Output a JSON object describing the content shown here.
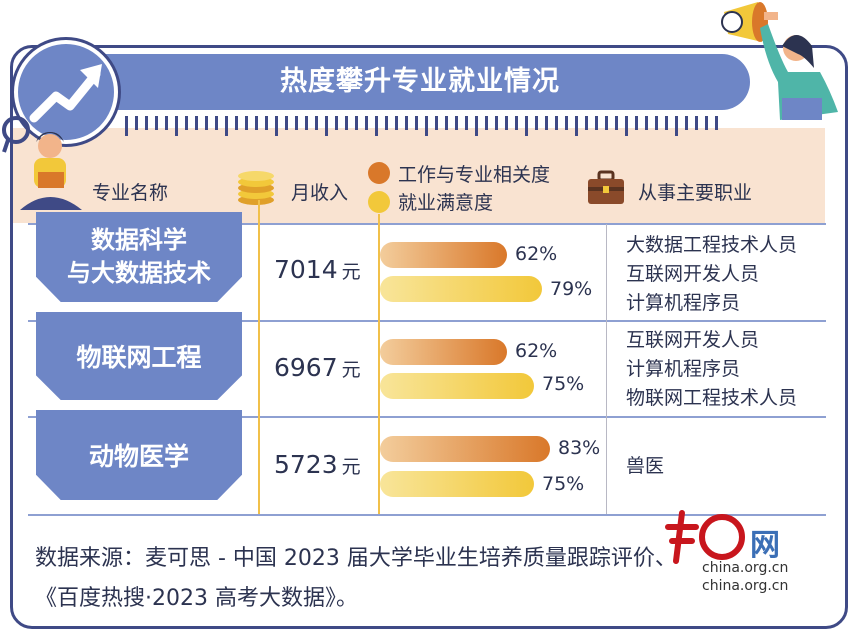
{
  "title": "热度攀升专业就业情况",
  "columns": {
    "major": "专业名称",
    "income": "月收入",
    "relevance": "工作与专业相关度",
    "satisfaction": "就业满意度",
    "jobs": "从事主要职业"
  },
  "colors": {
    "frame": "#3f4a86",
    "accent_blue": "#6e86c6",
    "relevance_bar": "#d9782a",
    "satisfaction_bar": "#f2c83a",
    "header_band": "#f9e3d1"
  },
  "rows": [
    {
      "major_line1": "数据科学",
      "major_line2": "与大数据技术",
      "income": "7014",
      "unit": "元",
      "relevance": "62%",
      "satisfaction": "79%",
      "jobs": [
        "大数据工程技术人员",
        "互联网开发人员",
        "计算机程序员"
      ]
    },
    {
      "major_line1": "物联网工程",
      "major_line2": "",
      "income": "6967",
      "unit": "元",
      "relevance": "62%",
      "satisfaction": "75%",
      "jobs": [
        "互联网开发人员",
        "计算机程序员",
        "物联网工程技术人员"
      ]
    },
    {
      "major_line1": "动物医学",
      "major_line2": "",
      "income": "5723",
      "unit": "元",
      "relevance": "83%",
      "satisfaction": "75%",
      "jobs": [
        "兽医"
      ]
    }
  ],
  "source_line1": "数据来源：麦可思 - 中国 2023 届大学毕业生培养质量跟踪评价、",
  "source_line2": "《百度热搜·2023 高考大数据》。",
  "watermark": "china.org.cn",
  "chart_data": {
    "type": "bar",
    "title": "热度攀升专业就业情况",
    "categories": [
      "数据科学与大数据技术",
      "物联网工程",
      "动物医学"
    ],
    "series": [
      {
        "name": "月收入",
        "values": [
          7014,
          6967,
          5723
        ]
      },
      {
        "name": "工作与专业相关度",
        "values": [
          62,
          62,
          83
        ]
      },
      {
        "name": "就业满意度",
        "values": [
          79,
          75,
          75
        ]
      }
    ],
    "xlim": [
      0,
      100
    ]
  }
}
